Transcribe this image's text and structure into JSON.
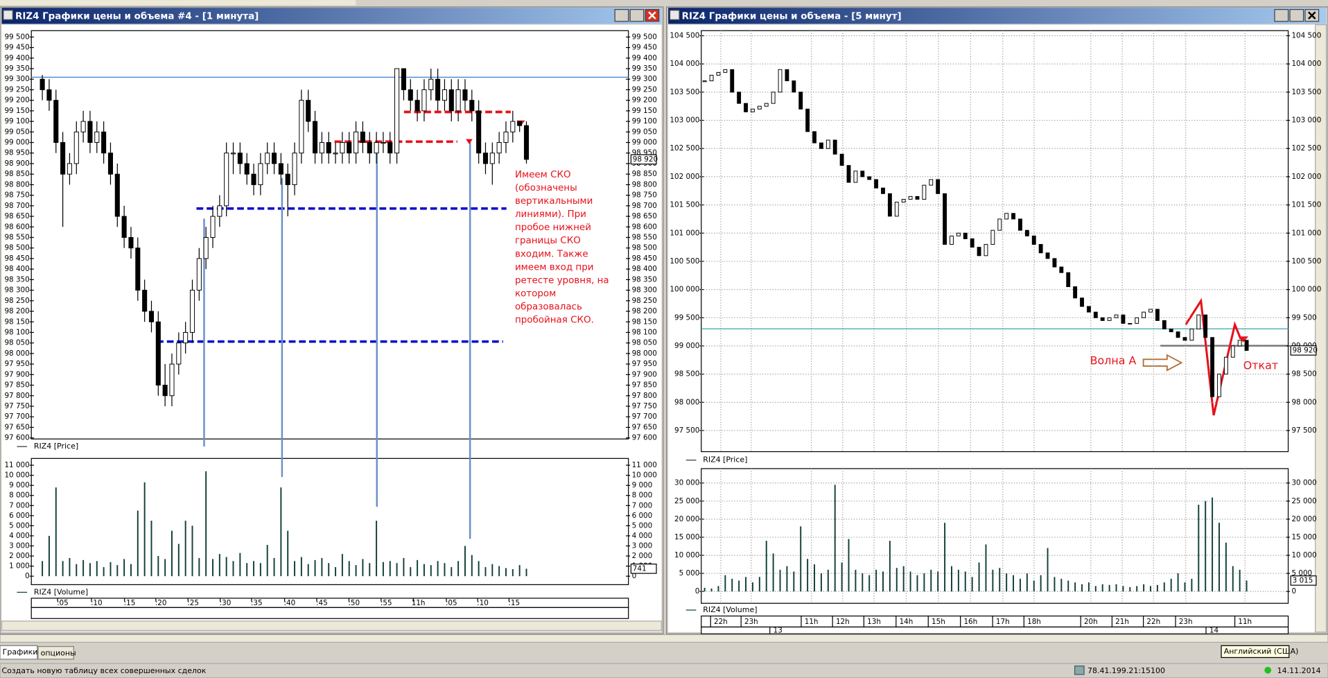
{
  "left_window": {
    "title": "RIZ4 Графики цены и объема #4 - [1 минута]",
    "price": {
      "type": "ohlc",
      "legend": "RIZ4 [Price]",
      "grid": false,
      "ylim": [
        97595,
        99530
      ],
      "yticks": [
        {
          "value": 99500,
          "label": "99 500"
        },
        {
          "value": 99450,
          "label": "99 450"
        },
        {
          "value": 99400,
          "label": "99 400"
        },
        {
          "value": 99350,
          "label": "99 350"
        },
        {
          "value": 99300,
          "label": "99 300"
        },
        {
          "value": 99250,
          "label": "99 250"
        },
        {
          "value": 99200,
          "label": "99 200"
        },
        {
          "value": 99150,
          "label": "99 150"
        },
        {
          "value": 99100,
          "label": "99 100"
        },
        {
          "value": 99050,
          "label": "99 050"
        },
        {
          "value": 99000,
          "label": "99 000"
        },
        {
          "value": 98950,
          "label": "98 950"
        },
        {
          "value": 98900,
          "label": "98 900"
        },
        {
          "value": 98850,
          "label": "98 850"
        },
        {
          "value": 98800,
          "label": "98 800"
        },
        {
          "value": 98750,
          "label": "98 750"
        },
        {
          "value": 98700,
          "label": "98 700"
        },
        {
          "value": 98650,
          "label": "98 650"
        },
        {
          "value": 98600,
          "label": "98 600"
        },
        {
          "value": 98550,
          "label": "98 550"
        },
        {
          "value": 98500,
          "label": "98 500"
        },
        {
          "value": 98450,
          "label": "98 450"
        },
        {
          "value": 98400,
          "label": "98 400"
        },
        {
          "value": 98350,
          "label": "98 350"
        },
        {
          "value": 98300,
          "label": "98 300"
        },
        {
          "value": 98250,
          "label": "98 250"
        },
        {
          "value": 98200,
          "label": "98 200"
        },
        {
          "value": 98150,
          "label": "98 150"
        },
        {
          "value": 98100,
          "label": "98 100"
        },
        {
          "value": 98050,
          "label": "98 050"
        },
        {
          "value": 98000,
          "label": "98 000"
        },
        {
          "value": 97950,
          "label": "97 950"
        },
        {
          "value": 97900,
          "label": "97 900"
        },
        {
          "value": 97850,
          "label": "97 850"
        },
        {
          "value": 97800,
          "label": "97 800"
        },
        {
          "value": 97750,
          "label": "97 750"
        },
        {
          "value": 97700,
          "label": "97 700"
        },
        {
          "value": 97650,
          "label": "97 650"
        },
        {
          "value": 97600,
          "label": "97 600"
        }
      ],
      "candles": [
        [
          99300,
          99320,
          99200,
          99250
        ],
        [
          99250,
          99300,
          99150,
          99200
        ],
        [
          99200,
          99250,
          98950,
          99000
        ],
        [
          99000,
          99050,
          98600,
          98850
        ],
        [
          98850,
          98950,
          98800,
          98900
        ],
        [
          98900,
          99100,
          98850,
          99050
        ],
        [
          99050,
          99150,
          99000,
          99100
        ],
        [
          99100,
          99150,
          98950,
          99000
        ],
        [
          99000,
          99100,
          98950,
          99050
        ],
        [
          99050,
          99100,
          98900,
          98950
        ],
        [
          98950,
          99000,
          98800,
          98850
        ],
        [
          98850,
          98900,
          98600,
          98650
        ],
        [
          98650,
          98700,
          98500,
          98550
        ],
        [
          98550,
          98600,
          98450,
          98500
        ],
        [
          98500,
          98550,
          98250,
          98300
        ],
        [
          98300,
          98350,
          98150,
          98200
        ],
        [
          98200,
          98250,
          98100,
          98150
        ],
        [
          98150,
          98200,
          97800,
          97850
        ],
        [
          97850,
          97950,
          97750,
          97800
        ],
        [
          97800,
          98000,
          97750,
          97950
        ],
        [
          97950,
          98100,
          97900,
          98050
        ],
        [
          98050,
          98150,
          98000,
          98100
        ],
        [
          98100,
          98350,
          98050,
          98300
        ],
        [
          98300,
          98500,
          98250,
          98450
        ],
        [
          98450,
          98600,
          98400,
          98550
        ],
        [
          98550,
          98700,
          98500,
          98650
        ],
        [
          98650,
          98750,
          98600,
          98700
        ],
        [
          98700,
          99000,
          98650,
          98950
        ],
        [
          98950,
          99000,
          98850,
          98950
        ],
        [
          98950,
          99000,
          98850,
          98900
        ],
        [
          98900,
          98950,
          98800,
          98850
        ],
        [
          98850,
          98900,
          98750,
          98800
        ],
        [
          98800,
          98950,
          98750,
          98900
        ],
        [
          98900,
          99000,
          98850,
          98950
        ],
        [
          98950,
          99000,
          98850,
          98900
        ],
        [
          98900,
          98950,
          98800,
          98850
        ],
        [
          98850,
          98900,
          98650,
          98800
        ],
        [
          98800,
          99000,
          98750,
          98950
        ],
        [
          98950,
          99250,
          98900,
          99200
        ],
        [
          99200,
          99250,
          99050,
          99100
        ],
        [
          99100,
          99150,
          98900,
          98950
        ],
        [
          98950,
          99050,
          98900,
          99000
        ],
        [
          99000,
          99050,
          98900,
          98950
        ],
        [
          98950,
          99000,
          98900,
          98950
        ],
        [
          98950,
          99050,
          98900,
          99000
        ],
        [
          99000,
          99050,
          98900,
          98950
        ],
        [
          98950,
          99100,
          98900,
          99050
        ],
        [
          99050,
          99100,
          98950,
          99000
        ],
        [
          99000,
          99050,
          98900,
          98950
        ],
        [
          98950,
          99050,
          98900,
          99000
        ],
        [
          99000,
          99050,
          98950,
          99000
        ],
        [
          99000,
          99050,
          98900,
          98950
        ],
        [
          98950,
          99350,
          98900,
          99350
        ],
        [
          99350,
          99350,
          99200,
          99250
        ],
        [
          99250,
          99300,
          99150,
          99200
        ],
        [
          99200,
          99250,
          99100,
          99150
        ],
        [
          99150,
          99300,
          99100,
          99250
        ],
        [
          99250,
          99350,
          99200,
          99300
        ],
        [
          99300,
          99350,
          99150,
          99200
        ],
        [
          99200,
          99300,
          99150,
          99250
        ],
        [
          99250,
          99300,
          99100,
          99150
        ],
        [
          99150,
          99300,
          99100,
          99250
        ],
        [
          99250,
          99300,
          99150,
          99200
        ],
        [
          99200,
          99250,
          99100,
          99150
        ],
        [
          99150,
          99200,
          98900,
          98950
        ],
        [
          98950,
          99000,
          98850,
          98900
        ],
        [
          98900,
          99000,
          98800,
          98950
        ],
        [
          98950,
          99050,
          98900,
          99000
        ],
        [
          99000,
          99100,
          98950,
          99050
        ],
        [
          99050,
          99150,
          99000,
          99100
        ],
        [
          99100,
          99100,
          99050,
          99080
        ],
        [
          99080,
          99100,
          98900,
          98920
        ]
      ],
      "last": {
        "value": 98920,
        "label": "98 920"
      }
    },
    "volume": {
      "type": "volume",
      "legend": "RIZ4 [Volume]",
      "grid": false,
      "color": "#123f38",
      "ylim": [
        -840,
        11670
      ],
      "yticks": [
        {
          "value": 11000,
          "label": "11 000"
        },
        {
          "value": 10000,
          "label": "10 000"
        },
        {
          "value": 9000,
          "label": "9 000"
        },
        {
          "value": 8000,
          "label": "8 000"
        },
        {
          "value": 7000,
          "label": "7 000"
        },
        {
          "value": 6000,
          "label": "6 000"
        },
        {
          "value": 5000,
          "label": "5 000"
        },
        {
          "value": 4000,
          "label": "4 000"
        },
        {
          "value": 3000,
          "label": "3 000"
        },
        {
          "value": 2000,
          "label": "2 000"
        },
        {
          "value": 1000,
          "label": "1 000"
        },
        0
      ],
      "values": [
        1500,
        4000,
        8800,
        1500,
        1800,
        1200,
        1600,
        1300,
        1500,
        900,
        1400,
        1100,
        1700,
        1200,
        6500,
        9300,
        5500,
        2000,
        1700,
        4500,
        3200,
        5500,
        5000,
        1800,
        10400,
        1700,
        2200,
        1900,
        1500,
        2300,
        1300,
        1500,
        1300,
        3100,
        1800,
        8800,
        4500,
        1500,
        1900,
        1200,
        1600,
        1800,
        1300,
        900,
        2200,
        1500,
        1100,
        1700,
        1300,
        5500,
        1400,
        1500,
        1300,
        1800,
        900,
        1600,
        1200,
        1100,
        1500,
        1300,
        900,
        1500,
        3000,
        2100,
        1500,
        900,
        1200,
        1000,
        800,
        700,
        1100,
        741
      ],
      "last": 741
    },
    "x_labels": [
      ":05",
      ":10",
      ":15",
      ":20",
      ":25",
      ":30",
      ":35",
      ":40",
      ":45",
      ":50",
      ":55",
      "11h",
      ":05",
      ":10",
      ":15"
    ],
    "note": [
      "Имеем СКО",
      "(обозначены",
      "вертикальными",
      "линиями). При",
      "пробое нижней",
      "границы СКО",
      "входим. Также",
      "имеем вход  при",
      "ретесте уровня, на",
      "котором",
      "образовалась",
      "пробойная СКО."
    ]
  },
  "right_window": {
    "title": "RIZ4 Графики цены и объема - [5 минут]",
    "price": {
      "type": "close",
      "legend": "RIZ4 [Price]",
      "grid": true,
      "ylim": [
        97125,
        104590
      ],
      "yticks": [
        {
          "value": 104500,
          "label": "104 500"
        },
        {
          "value": 104000,
          "label": "104 000"
        },
        {
          "value": 103500,
          "label": "103 500"
        },
        {
          "value": 103000,
          "label": "103 000"
        },
        {
          "value": 102500,
          "label": "102 500"
        },
        {
          "value": 102000,
          "label": "102 000"
        },
        {
          "value": 101500,
          "label": "101 500"
        },
        {
          "value": 101000,
          "label": "101 000"
        },
        {
          "value": 100500,
          "label": "100 500"
        },
        {
          "value": 100000,
          "label": "100 000"
        },
        {
          "value": 99500,
          "label": "99 500"
        },
        {
          "value": 99000,
          "label": "99 000"
        },
        {
          "value": 98500,
          "label": "98 500"
        },
        {
          "value": 98000,
          "label": "98 000"
        },
        {
          "value": 97500,
          "label": "97 500"
        }
      ],
      "closes": [
        103700,
        103800,
        103850,
        103900,
        103500,
        103300,
        103150,
        103200,
        103250,
        103300,
        103500,
        103900,
        103700,
        103500,
        103200,
        102800,
        102600,
        102500,
        102650,
        102400,
        102200,
        101900,
        102100,
        102000,
        101950,
        101800,
        101700,
        101300,
        101550,
        101600,
        101650,
        101600,
        101850,
        101950,
        101700,
        100800,
        100950,
        101000,
        100900,
        100750,
        100600,
        100800,
        101050,
        101250,
        101350,
        101250,
        101050,
        100950,
        100800,
        100650,
        100550,
        100400,
        100300,
        100050,
        99850,
        99700,
        99600,
        99500,
        99450,
        99500,
        99550,
        99400,
        99400,
        99500,
        99600,
        99650,
        99450,
        99300,
        99250,
        99150,
        99100,
        99300,
        99550,
        99150,
        98100,
        98500,
        98800,
        99000,
        99100,
        98920
      ],
      "last": {
        "value": 98920,
        "label": "98 920"
      }
    },
    "volume": {
      "type": "volume",
      "legend": "RIZ4 [Volume]",
      "grid": true,
      "color": "#123f38",
      "ylim": [
        -3280,
        33985
      ],
      "yticks": [
        {
          "value": 30000,
          "label": "30 000"
        },
        {
          "value": 25000,
          "label": "25 000"
        },
        {
          "value": 20000,
          "label": "20 000"
        },
        {
          "value": 15000,
          "label": "15 000"
        },
        {
          "value": 10000,
          "label": "10 000"
        },
        {
          "value": 5000,
          "label": "5 000"
        },
        0
      ],
      "values": [
        1000,
        800,
        1500,
        4500,
        3500,
        3000,
        4000,
        2500,
        4000,
        14000,
        10500,
        6000,
        7000,
        5500,
        18000,
        9000,
        7500,
        5000,
        6000,
        29500,
        8000,
        14500,
        6000,
        5000,
        4500,
        6000,
        5500,
        14000,
        6500,
        7000,
        5500,
        4500,
        5000,
        6000,
        5500,
        19000,
        7000,
        6000,
        5500,
        4000,
        8000,
        13000,
        6000,
        6500,
        5000,
        4500,
        3500,
        5000,
        3000,
        4500,
        12000,
        4000,
        3500,
        3000,
        2500,
        2000,
        2500,
        1500,
        2000,
        1800,
        2000,
        1500,
        1200,
        1500,
        2000,
        1500,
        1800,
        2500,
        3500,
        5000,
        2500,
        3500,
        24000,
        25000,
        26000,
        19000,
        13500,
        7000,
        6000,
        3015
      ],
      "last": {
        "value": 3015,
        "label": "3 015"
      }
    },
    "x_labels": [
      "22h",
      "23h",
      "11h",
      "12h",
      "13h",
      "14h",
      "15h",
      "16h",
      "17h",
      "18h",
      "20h",
      "21h",
      "22h",
      "23h",
      "11h"
    ],
    "dates": [
      "13",
      "14"
    ],
    "wave_label": "Волна А",
    "pullback_label": "Откат"
  },
  "tabs": [
    "Графики",
    "опционы"
  ],
  "language": "Английский (США)",
  "status_bar": {
    "hint": "Создать новую таблицу всех совершенных сделок",
    "server": "78.41.199.21:15100",
    "date": "14.11.2014"
  }
}
